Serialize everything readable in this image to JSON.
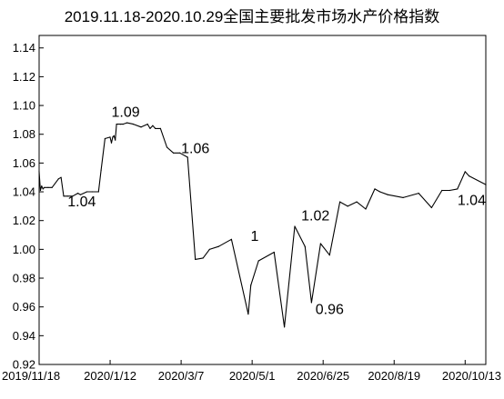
{
  "chart_data": {
    "type": "line",
    "title": "2019.11.18-2020.10.29全国主要批发市场水产价格指数",
    "xlabel": "",
    "ylabel": "",
    "ylim": [
      0.92,
      1.15
    ],
    "yticks": [
      "0.92",
      "0.94",
      "0.96",
      "0.98",
      "1.00",
      "1.02",
      "1.04",
      "1.06",
      "1.08",
      "1.10",
      "1.12",
      "1.14"
    ],
    "xticks": [
      "2019/11/18",
      "2020/1/12",
      "2020/3/7",
      "2020/5/1",
      "2020/6/25",
      "2020/8/19",
      "2020/10/13"
    ],
    "x_start": "2019/11/18",
    "x_end": "2020/10/29",
    "grid": false,
    "series": [
      {
        "x": [
          "2019/11/18",
          "2019/11/19",
          "2019/11/20",
          "2019/11/21",
          "2019/11/22",
          "2019/11/25",
          "2019/11/28",
          "2019/12/3",
          "2019/12/5",
          "2019/12/7",
          "2019/12/10",
          "2019/12/14",
          "2019/12/18",
          "2019/12/20",
          "2019/12/25",
          "2019/12/29",
          "2020/1/3",
          "2020/1/5",
          "2020/1/8",
          "2020/1/12",
          "2020/1/13",
          "2020/1/14",
          "2020/1/15",
          "2020/1/16",
          "2020/1/17",
          "2020/1/20",
          "2020/1/22",
          "2020/1/25",
          "2020/1/30",
          "2020/2/5",
          "2020/2/10",
          "2020/2/12",
          "2020/2/14",
          "2020/2/16",
          "2020/2/20",
          "2020/2/25",
          "2020/3/1",
          "2020/3/6",
          "2020/3/12",
          "2020/3/18",
          "2020/3/24",
          "2020/3/29",
          "2020/4/5",
          "2020/4/15",
          "2020/4/28",
          "2020/4/30",
          "2020/5/6",
          "2020/5/18",
          "2020/5/26",
          "2020/6/3",
          "2020/6/11",
          "2020/6/16",
          "2020/6/23",
          "2020/6/30",
          "2020/7/8",
          "2020/7/14",
          "2020/7/21",
          "2020/7/28",
          "2020/8/4",
          "2020/8/8",
          "2020/8/14",
          "2020/8/26",
          "2020/9/7",
          "2020/9/17",
          "2020/9/25",
          "2020/10/1",
          "2020/10/7",
          "2020/10/13",
          "2020/10/16",
          "2020/10/29"
        ],
        "values": [
          1.054,
          1.041,
          1.044,
          1.042,
          1.043,
          1.043,
          1.043,
          1.049,
          1.05,
          1.037,
          1.037,
          1.037,
          1.039,
          1.038,
          1.04,
          1.04,
          1.04,
          1.055,
          1.077,
          1.078,
          1.074,
          1.078,
          1.079,
          1.076,
          1.087,
          1.087,
          1.087,
          1.088,
          1.087,
          1.085,
          1.087,
          1.084,
          1.086,
          1.084,
          1.084,
          1.071,
          1.067,
          1.067,
          1.064,
          0.993,
          0.994,
          1.0,
          1.002,
          1.007,
          0.955,
          0.975,
          0.992,
          0.998,
          0.946,
          1.016,
          1.002,
          0.963,
          1.004,
          0.996,
          1.033,
          1.03,
          1.033,
          1.028,
          1.042,
          1.04,
          1.038,
          1.036,
          1.039,
          1.029,
          1.041,
          1.041,
          1.042,
          1.054,
          1.051,
          1.045
        ]
      }
    ],
    "annotations": [
      {
        "text": "1.04",
        "x": "2019/12/21",
        "y": 1.03
      },
      {
        "text": "1.09",
        "x": "2020/1/24",
        "y": 1.092
      },
      {
        "text": "1.06",
        "x": "2020/3/18",
        "y": 1.067
      },
      {
        "text": "1",
        "x": "2020/5/3",
        "y": 1.006
      },
      {
        "text": "1.02",
        "x": "2020/6/19",
        "y": 1.02
      },
      {
        "text": "0.96",
        "x": "2020/6/30",
        "y": 0.955
      },
      {
        "text": "1.04",
        "x": "2020/10/18",
        "y": 1.031
      }
    ]
  }
}
